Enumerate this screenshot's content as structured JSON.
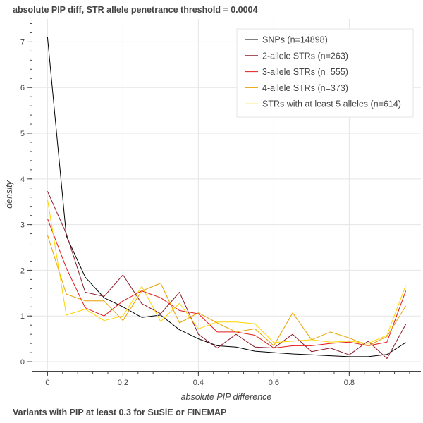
{
  "chart_data": {
    "type": "line",
    "title": "absolute PIP diff, STR allele penetrance threshold = 0.0004",
    "caption": "Variants with PIP at least 0.3 for SuSiE or FINEMAP",
    "xlabel": "absolute PIP difference",
    "ylabel": "density",
    "xlim": [
      -0.04,
      0.99
    ],
    "ylim": [
      -0.2,
      7.5
    ],
    "xticks": [
      0,
      0.2,
      0.4,
      0.6,
      0.8
    ],
    "yticks": [
      0,
      1,
      2,
      3,
      4,
      5,
      6,
      7
    ],
    "grid": true,
    "legend_position": "top-right",
    "x": [
      0,
      0.05,
      0.1,
      0.15,
      0.2,
      0.25,
      0.3,
      0.35,
      0.4,
      0.45,
      0.5,
      0.55,
      0.6,
      0.65,
      0.7,
      0.75,
      0.8,
      0.85,
      0.9,
      0.95
    ],
    "series": [
      {
        "name": "SNPs (n=14898)",
        "color": "#000000",
        "values": [
          7.1,
          2.75,
          1.85,
          1.4,
          1.2,
          0.97,
          1.02,
          0.7,
          0.5,
          0.35,
          0.32,
          0.23,
          0.2,
          0.17,
          0.15,
          0.13,
          0.11,
          0.11,
          0.16,
          0.42
        ]
      },
      {
        "name": "2-allele STRs (n=263)",
        "color": "#8b1a2b",
        "values": [
          3.73,
          2.8,
          1.52,
          1.43,
          1.9,
          1.27,
          1.05,
          1.52,
          0.6,
          0.3,
          0.6,
          0.32,
          0.3,
          0.6,
          0.22,
          0.3,
          0.15,
          0.45,
          0.07,
          0.82
        ]
      },
      {
        "name": "3-allele STRs (n=555)",
        "color": "#e41a1c",
        "values": [
          3.13,
          2.05,
          1.18,
          1.0,
          1.33,
          1.55,
          1.4,
          1.12,
          1.05,
          0.65,
          0.65,
          0.58,
          0.3,
          0.35,
          0.35,
          0.4,
          0.43,
          0.35,
          0.43,
          1.55
        ]
      },
      {
        "name": "4-allele STRs (n=373)",
        "color": "#e8a100",
        "values": [
          2.77,
          1.48,
          1.33,
          1.33,
          0.9,
          1.55,
          1.72,
          0.85,
          1.07,
          0.85,
          0.65,
          0.72,
          0.35,
          1.07,
          0.48,
          0.65,
          0.52,
          0.35,
          0.55,
          1.22
        ]
      },
      {
        "name": "STRs with at least 5 alleles (n=614)",
        "color": "#ffd400",
        "values": [
          3.55,
          1.02,
          1.15,
          0.9,
          1.0,
          1.65,
          0.88,
          1.28,
          0.72,
          0.87,
          0.87,
          0.83,
          0.42,
          0.45,
          0.48,
          0.43,
          0.45,
          0.4,
          0.58,
          1.67
        ]
      }
    ]
  }
}
